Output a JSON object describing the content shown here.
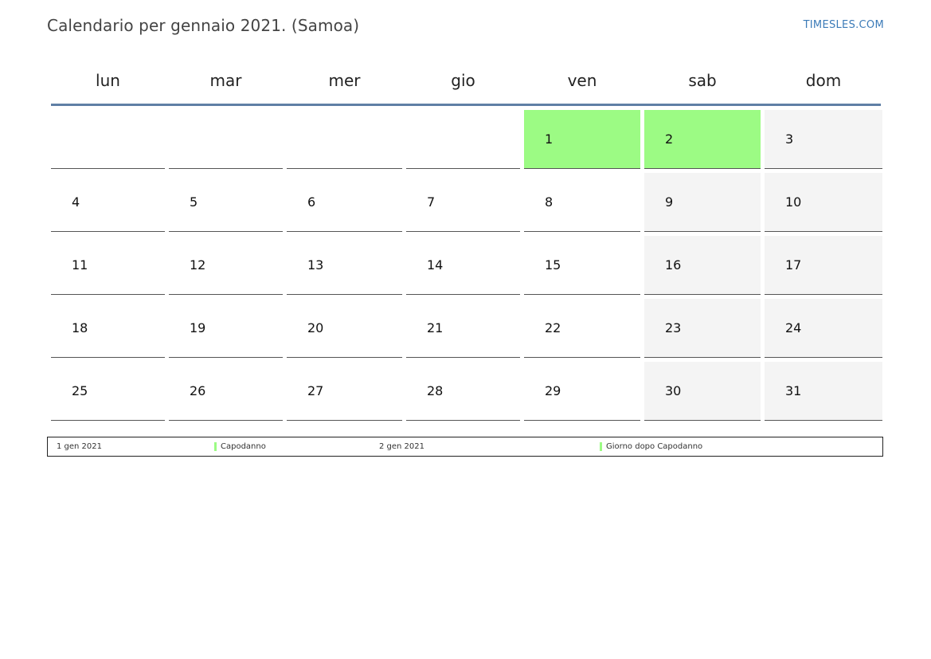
{
  "title": "Calendario per gennaio 2021. (Samoa)",
  "brand": "TIMESLES.COM",
  "weekdays": [
    "lun",
    "mar",
    "mer",
    "gio",
    "ven",
    "sab",
    "dom"
  ],
  "weeks": [
    [
      "",
      "",
      "",
      "",
      "1",
      "2",
      "3"
    ],
    [
      "4",
      "5",
      "6",
      "7",
      "8",
      "9",
      "10"
    ],
    [
      "11",
      "12",
      "13",
      "14",
      "15",
      "16",
      "17"
    ],
    [
      "18",
      "19",
      "20",
      "21",
      "22",
      "23",
      "24"
    ],
    [
      "25",
      "26",
      "27",
      "28",
      "29",
      "30",
      "31"
    ]
  ],
  "holiday_color": "#9cfb84",
  "weekend_color": "#f4f4f4",
  "legend": [
    {
      "date": "1 gen 2021",
      "name": "Capodanno"
    },
    {
      "date": "2 gen 2021",
      "name": "Giorno dopo Capodanno"
    }
  ]
}
